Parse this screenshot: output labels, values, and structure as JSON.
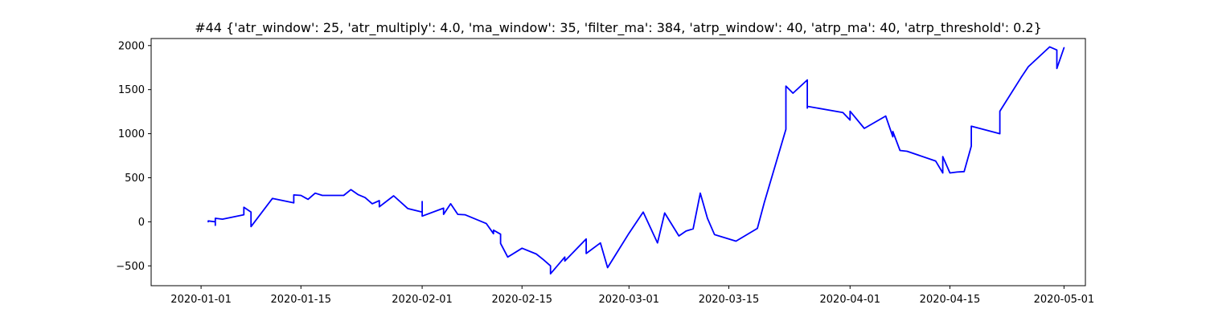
{
  "chart_data": {
    "type": "line",
    "title": "#44 {'atr_window': 25, 'atr_multiply': 4.0, 'ma_window': 35, 'filter_ma': 384, 'atrp_window': 40, 'atrp_ma': 40, 'atrp_threshold': 0.2}",
    "xlabel": "",
    "ylabel": "",
    "x_axis": "date",
    "xlim": [
      "2019-12-25",
      "2020-05-04"
    ],
    "ylim": [
      -725,
      2080
    ],
    "xticks": [
      "2020-01-01",
      "2020-01-15",
      "2020-02-01",
      "2020-02-15",
      "2020-03-01",
      "2020-03-15",
      "2020-04-01",
      "2020-04-15",
      "2020-05-01"
    ],
    "yticks": [
      -500,
      0,
      500,
      1000,
      1500,
      2000
    ],
    "grid": false,
    "series": [
      {
        "color": "#0000ff",
        "points": [
          [
            "2020-01-02",
            0
          ],
          [
            "2020-01-02",
            10
          ],
          [
            "2020-01-03",
            0
          ],
          [
            "2020-01-03",
            -40
          ],
          [
            "2020-01-03",
            40
          ],
          [
            "2020-01-04",
            30
          ],
          [
            "2020-01-07",
            80
          ],
          [
            "2020-01-07",
            165
          ],
          [
            "2020-01-08",
            110
          ],
          [
            "2020-01-08",
            -55
          ],
          [
            "2020-01-11",
            265
          ],
          [
            "2020-01-14",
            215
          ],
          [
            "2020-01-14",
            305
          ],
          [
            "2020-01-15",
            300
          ],
          [
            "2020-01-16",
            255
          ],
          [
            "2020-01-17",
            325
          ],
          [
            "2020-01-18",
            300
          ],
          [
            "2020-01-21",
            300
          ],
          [
            "2020-01-22",
            365
          ],
          [
            "2020-01-23",
            310
          ],
          [
            "2020-01-24",
            275
          ],
          [
            "2020-01-25",
            205
          ],
          [
            "2020-01-26",
            240
          ],
          [
            "2020-01-26",
            170
          ],
          [
            "2020-01-28",
            295
          ],
          [
            "2020-01-30",
            150
          ],
          [
            "2020-02-01",
            110
          ],
          [
            "2020-02-01",
            195
          ],
          [
            "2020-02-01",
            230
          ],
          [
            "2020-02-01",
            65
          ],
          [
            "2020-02-04",
            155
          ],
          [
            "2020-02-04",
            85
          ],
          [
            "2020-02-05",
            205
          ],
          [
            "2020-02-06",
            85
          ],
          [
            "2020-02-07",
            80
          ],
          [
            "2020-02-10",
            -20
          ],
          [
            "2020-02-11",
            -135
          ],
          [
            "2020-02-11",
            -95
          ],
          [
            "2020-02-12",
            -140
          ],
          [
            "2020-02-12",
            -245
          ],
          [
            "2020-02-13",
            -400
          ],
          [
            "2020-02-15",
            -300
          ],
          [
            "2020-02-17",
            -365
          ],
          [
            "2020-02-18",
            -430
          ],
          [
            "2020-02-19",
            -500
          ],
          [
            "2020-02-19",
            -590
          ],
          [
            "2020-02-21",
            -400
          ],
          [
            "2020-02-21",
            -445
          ],
          [
            "2020-02-24",
            -195
          ],
          [
            "2020-02-24",
            -360
          ],
          [
            "2020-02-26",
            -240
          ],
          [
            "2020-02-27",
            -520
          ],
          [
            "2020-03-01",
            -130
          ],
          [
            "2020-03-03",
            110
          ],
          [
            "2020-03-05",
            -240
          ],
          [
            "2020-03-06",
            100
          ],
          [
            "2020-03-08",
            -160
          ],
          [
            "2020-03-09",
            -105
          ],
          [
            "2020-03-10",
            -80
          ],
          [
            "2020-03-11",
            325
          ],
          [
            "2020-03-12",
            40
          ],
          [
            "2020-03-13",
            -145
          ],
          [
            "2020-03-16",
            -220
          ],
          [
            "2020-03-19",
            -75
          ],
          [
            "2020-03-20",
            225
          ],
          [
            "2020-03-23",
            1050
          ],
          [
            "2020-03-23",
            1540
          ],
          [
            "2020-03-24",
            1460
          ],
          [
            "2020-03-26",
            1610
          ],
          [
            "2020-03-26",
            1290
          ],
          [
            "2020-03-26",
            1310
          ],
          [
            "2020-03-31",
            1240
          ],
          [
            "2020-04-01",
            1155
          ],
          [
            "2020-04-01",
            1255
          ],
          [
            "2020-04-03",
            1060
          ],
          [
            "2020-04-06",
            1200
          ],
          [
            "2020-04-07",
            965
          ],
          [
            "2020-04-07",
            1025
          ],
          [
            "2020-04-08",
            810
          ],
          [
            "2020-04-09",
            800
          ],
          [
            "2020-04-13",
            690
          ],
          [
            "2020-04-14",
            555
          ],
          [
            "2020-04-14",
            740
          ],
          [
            "2020-04-15",
            555
          ],
          [
            "2020-04-16",
            565
          ],
          [
            "2020-04-17",
            570
          ],
          [
            "2020-04-18",
            860
          ],
          [
            "2020-04-18",
            1085
          ],
          [
            "2020-04-22",
            1000
          ],
          [
            "2020-04-22",
            1255
          ],
          [
            "2020-04-25",
            1640
          ],
          [
            "2020-04-26",
            1760
          ],
          [
            "2020-04-29",
            1985
          ],
          [
            "2020-04-30",
            1950
          ],
          [
            "2020-04-30",
            1740
          ],
          [
            "2020-05-01",
            1975
          ]
        ]
      }
    ]
  }
}
